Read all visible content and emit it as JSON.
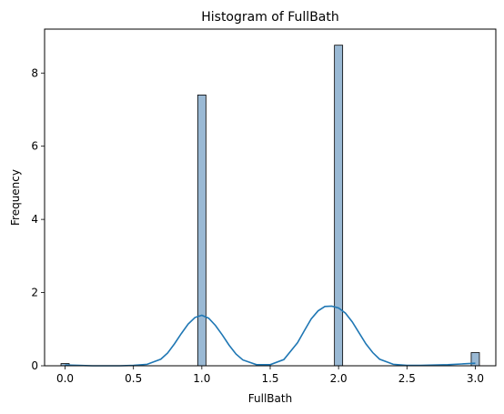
{
  "chart_data": {
    "type": "bar",
    "title": "Histogram of FullBath",
    "xlabel": "FullBath",
    "ylabel": "Frequency",
    "xlim": [
      -0.15,
      3.15
    ],
    "ylim": [
      0,
      9.2
    ],
    "xticks": [
      "0.0",
      "0.5",
      "1.0",
      "1.5",
      "2.0",
      "2.5",
      "3.0"
    ],
    "xtick_values": [
      0,
      0.5,
      1.0,
      1.5,
      2.0,
      2.5,
      3.0
    ],
    "yticks": [
      "0",
      "2",
      "4",
      "6",
      "8"
    ],
    "ytick_values": [
      0,
      2,
      4,
      6,
      8
    ],
    "bin_width": 0.06,
    "bars": [
      {
        "x": 0.0,
        "value": 0.06
      },
      {
        "x": 1.0,
        "value": 7.4
      },
      {
        "x": 2.0,
        "value": 8.76
      },
      {
        "x": 3.0,
        "value": 0.36
      }
    ],
    "kde": {
      "x": [
        0.0,
        0.1,
        0.2,
        0.3,
        0.4,
        0.5,
        0.6,
        0.7,
        0.75,
        0.8,
        0.85,
        0.9,
        0.95,
        1.0,
        1.05,
        1.1,
        1.15,
        1.2,
        1.25,
        1.3,
        1.4,
        1.5,
        1.6,
        1.7,
        1.75,
        1.8,
        1.85,
        1.9,
        1.95,
        2.0,
        2.05,
        2.1,
        2.15,
        2.2,
        2.25,
        2.3,
        2.4,
        2.5,
        2.6,
        2.7,
        2.8,
        2.9,
        3.0
      ],
      "y": [
        0.02,
        0.01,
        0.0,
        0.0,
        0.0,
        0.01,
        0.04,
        0.18,
        0.35,
        0.6,
        0.88,
        1.14,
        1.32,
        1.38,
        1.3,
        1.1,
        0.84,
        0.56,
        0.32,
        0.16,
        0.03,
        0.03,
        0.17,
        0.63,
        0.96,
        1.28,
        1.5,
        1.62,
        1.63,
        1.58,
        1.44,
        1.2,
        0.9,
        0.6,
        0.36,
        0.18,
        0.04,
        0.01,
        0.01,
        0.02,
        0.03,
        0.05,
        0.07
      ]
    },
    "colors": {
      "bar_fill": "#9ab9d4",
      "bar_edge": "#000000",
      "kde_line": "#1f77b4"
    },
    "grid": false
  }
}
